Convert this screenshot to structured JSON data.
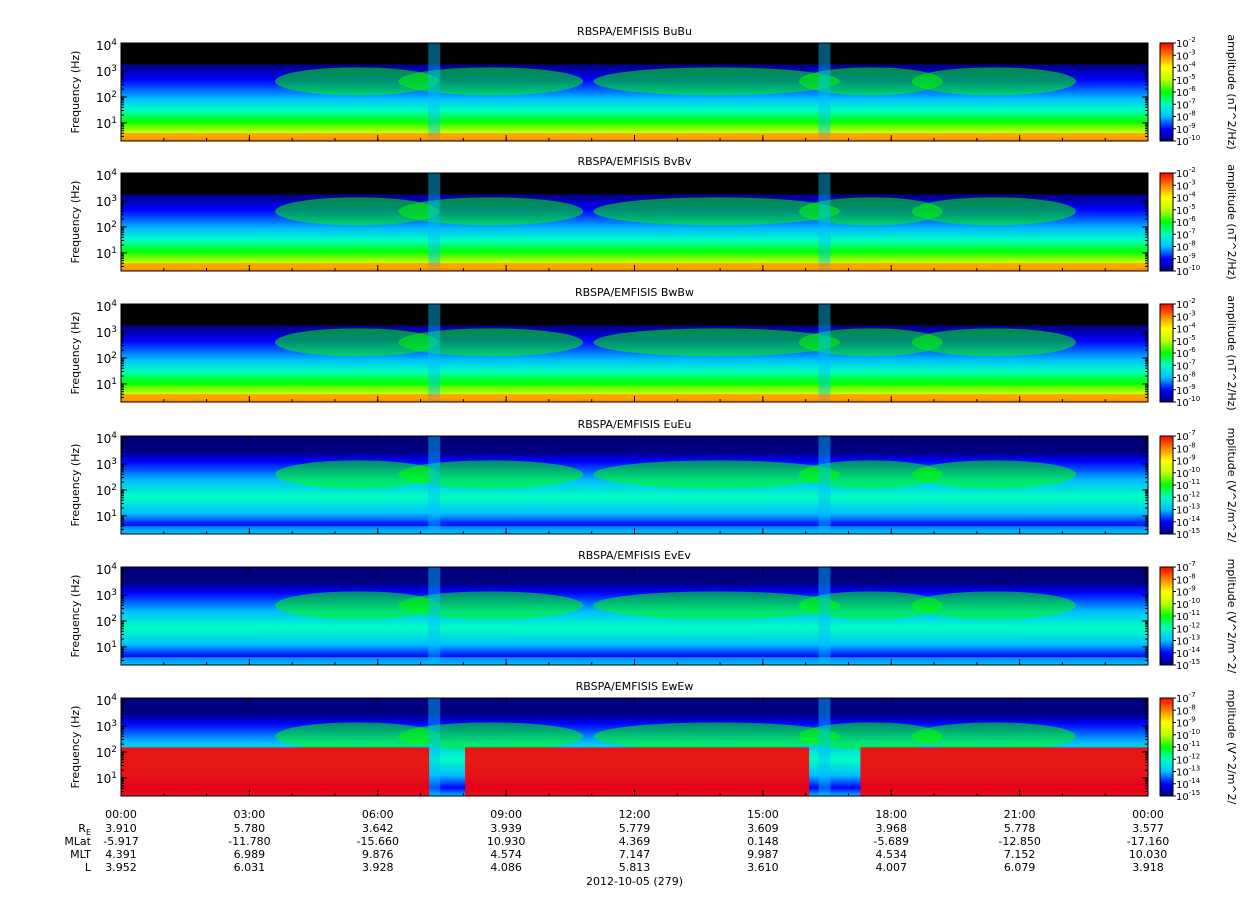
{
  "chart_data": {
    "type": "heatmap",
    "panels": [
      {
        "title": "RBSPA/EMFISIS  BuBu",
        "ylabel": "Frequency (Hz)",
        "yscale": "log",
        "ylim": [
          2,
          12000
        ],
        "ytick_values": [
          10,
          100,
          1000,
          10000
        ],
        "ytick_labels": [
          "10",
          "10",
          "10",
          "10"
        ],
        "ytick_exps": [
          "1",
          "2",
          "3",
          "4"
        ],
        "cbar_label": "amplitude (nT^2/Hz)",
        "cbar_tick_labels": [
          "10",
          "10",
          "10",
          "10",
          "10",
          "10",
          "10",
          "10",
          "10"
        ],
        "cbar_tick_exps": [
          "-2",
          "-3",
          "-4",
          "-5",
          "-6",
          "-7",
          "-8",
          "-9",
          "-10"
        ],
        "colormap": [
          "#00007f",
          "#0000ff",
          "#00bfff",
          "#00ffbf",
          "#00ff00",
          "#bfff00",
          "#ffff00",
          "#ff8000",
          "#ff0000"
        ],
        "background_above_emission": "#000000"
      },
      {
        "title": "RBSPA/EMFISIS  BvBv",
        "ylabel": "Frequency (Hz)",
        "yscale": "log",
        "ylim": [
          2,
          12000
        ],
        "ytick_values": [
          10,
          100,
          1000,
          10000
        ],
        "ytick_labels": [
          "10",
          "10",
          "10",
          "10"
        ],
        "ytick_exps": [
          "1",
          "2",
          "3",
          "4"
        ],
        "cbar_label": "amplitude (nT^2/Hz)",
        "cbar_tick_labels": [
          "10",
          "10",
          "10",
          "10",
          "10",
          "10",
          "10",
          "10",
          "10"
        ],
        "cbar_tick_exps": [
          "-2",
          "-3",
          "-4",
          "-5",
          "-6",
          "-7",
          "-8",
          "-9",
          "-10"
        ],
        "colormap": [
          "#00007f",
          "#0000ff",
          "#00bfff",
          "#00ffbf",
          "#00ff00",
          "#bfff00",
          "#ffff00",
          "#ff8000",
          "#ff0000"
        ],
        "background_above_emission": "#000000"
      },
      {
        "title": "RBSPA/EMFISIS  BwBw",
        "ylabel": "Frequency (Hz)",
        "yscale": "log",
        "ylim": [
          2,
          12000
        ],
        "ytick_values": [
          10,
          100,
          1000,
          10000
        ],
        "ytick_labels": [
          "10",
          "10",
          "10",
          "10"
        ],
        "ytick_exps": [
          "1",
          "2",
          "3",
          "4"
        ],
        "cbar_label": "amplitude (nT^2/Hz)",
        "cbar_tick_labels": [
          "10",
          "10",
          "10",
          "10",
          "10",
          "10",
          "10",
          "10",
          "10"
        ],
        "cbar_tick_exps": [
          "-2",
          "-3",
          "-4",
          "-5",
          "-6",
          "-7",
          "-8",
          "-9",
          "-10"
        ],
        "colormap": [
          "#00007f",
          "#0000ff",
          "#00bfff",
          "#00ffbf",
          "#00ff00",
          "#bfff00",
          "#ffff00",
          "#ff8000",
          "#ff0000"
        ],
        "background_above_emission": "#000000"
      },
      {
        "title": "RBSPA/EMFISIS  EuEu",
        "ylabel": "Frequency (Hz)",
        "yscale": "log",
        "ylim": [
          2,
          12000
        ],
        "ytick_values": [
          10,
          100,
          1000,
          10000
        ],
        "ytick_labels": [
          "10",
          "10",
          "10",
          "10"
        ],
        "ytick_exps": [
          "1",
          "2",
          "3",
          "4"
        ],
        "cbar_label": "mplitude (V^2/m^2/",
        "cbar_tick_labels": [
          "10",
          "10",
          "10",
          "10",
          "10",
          "10",
          "10",
          "10",
          "10"
        ],
        "cbar_tick_exps": [
          "-7",
          "-8",
          "-9",
          "-10",
          "-11",
          "-12",
          "-13",
          "-14",
          "-15"
        ],
        "colormap": [
          "#00007f",
          "#0000ff",
          "#00bfff",
          "#00ffbf",
          "#00ff00",
          "#bfff00",
          "#ffff00",
          "#ff8000",
          "#ff0000"
        ],
        "background_above_emission": "#00007f"
      },
      {
        "title": "RBSPA/EMFISIS  EvEv",
        "ylabel": "Frequency (Hz)",
        "yscale": "log",
        "ylim": [
          2,
          12000
        ],
        "ytick_values": [
          10,
          100,
          1000,
          10000
        ],
        "ytick_labels": [
          "10",
          "10",
          "10",
          "10"
        ],
        "ytick_exps": [
          "1",
          "2",
          "3",
          "4"
        ],
        "cbar_label": "mplitude (V^2/m^2/",
        "cbar_tick_labels": [
          "10",
          "10",
          "10",
          "10",
          "10",
          "10",
          "10",
          "10",
          "10"
        ],
        "cbar_tick_exps": [
          "-7",
          "-8",
          "-9",
          "-10",
          "-11",
          "-12",
          "-13",
          "-14",
          "-15"
        ],
        "colormap": [
          "#00007f",
          "#0000ff",
          "#00bfff",
          "#00ffbf",
          "#00ff00",
          "#bfff00",
          "#ffff00",
          "#ff8000",
          "#ff0000"
        ],
        "background_above_emission": "#00007f"
      },
      {
        "title": "RBSPA/EMFISIS  EwEw",
        "ylabel": "Frequency (Hz)",
        "yscale": "log",
        "ylim": [
          2,
          12000
        ],
        "ytick_values": [
          10,
          100,
          1000,
          10000
        ],
        "ytick_labels": [
          "10",
          "10",
          "10",
          "10"
        ],
        "ytick_exps": [
          "1",
          "2",
          "3",
          "4"
        ],
        "cbar_label": "mplitude (V^2/m^2/",
        "cbar_tick_labels": [
          "10",
          "10",
          "10",
          "10",
          "10",
          "10",
          "10",
          "10",
          "10"
        ],
        "cbar_tick_exps": [
          "-7",
          "-8",
          "-9",
          "-10",
          "-11",
          "-12",
          "-13",
          "-14",
          "-15"
        ],
        "colormap": [
          "#00007f",
          "#0000ff",
          "#00bfff",
          "#00ffbf",
          "#00ff00",
          "#bfff00",
          "#ffff00",
          "#ff8000",
          "#ff0000"
        ],
        "background_above_emission": "#00007f"
      }
    ],
    "x_axis": {
      "ticks": [
        "00:00",
        "03:00",
        "06:00",
        "09:00",
        "12:00",
        "15:00",
        "18:00",
        "21:00",
        "00:00"
      ],
      "date_label": "2012-10-05 (279)"
    },
    "ephemeris": {
      "row_labels": [
        "R",
        "MLat",
        "MLT",
        "L"
      ],
      "row_label_subscripts": [
        "E",
        "",
        "",
        ""
      ],
      "rows": [
        [
          "3.910",
          "5.780",
          "3.642",
          "3.939",
          "5.779",
          "3.609",
          "3.968",
          "5.778",
          "3.577"
        ],
        [
          "-5.917",
          "-11.780",
          "-15.660",
          "10.930",
          "4.369",
          "0.148",
          "-5.689",
          "-12.850",
          "-17.160"
        ],
        [
          "4.391",
          "6.989",
          "9.876",
          "4.574",
          "7.147",
          "9.987",
          "4.534",
          "7.152",
          "10.030"
        ],
        [
          "3.952",
          "6.031",
          "3.928",
          "4.086",
          "5.813",
          "3.610",
          "4.007",
          "6.079",
          "3.918"
        ]
      ]
    }
  }
}
